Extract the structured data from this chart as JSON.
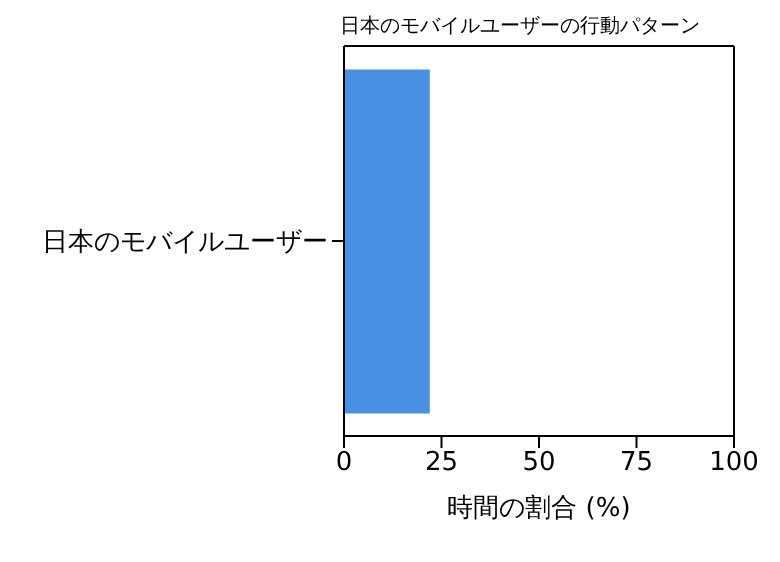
{
  "chart_data": {
    "type": "bar",
    "orientation": "horizontal",
    "title": "日本のモバイルユーザーの行動パターン",
    "xlabel": "時間の割合 (%)",
    "categories": [
      "日本のモバイルユーザー"
    ],
    "values": [
      22
    ],
    "color": "#4a90e2",
    "xlim": [
      0,
      100
    ],
    "xticks": [
      0,
      25,
      50,
      75,
      100
    ],
    "grid": false
  }
}
